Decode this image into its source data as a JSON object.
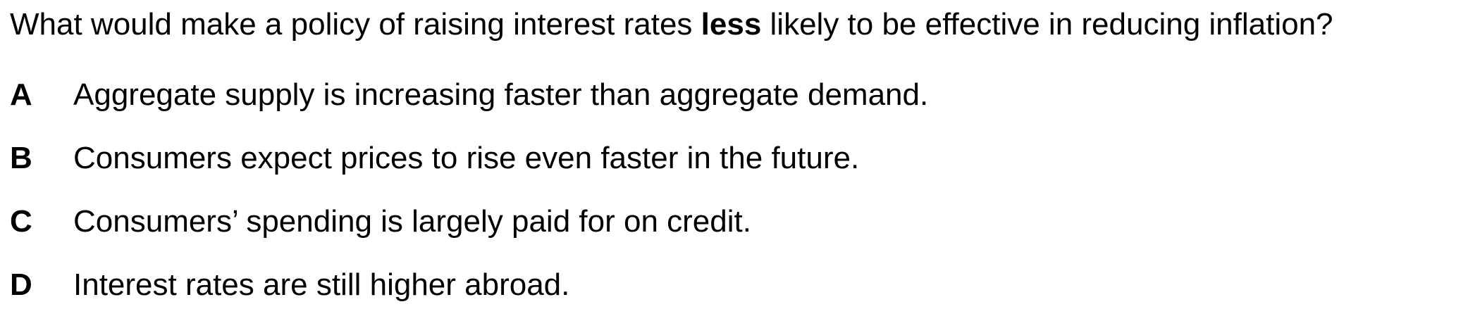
{
  "question": {
    "prefix": "What would make a policy of raising interest rates ",
    "emphasis": "less",
    "suffix": " likely to be effective in reducing inflation?"
  },
  "options": [
    {
      "letter": "A",
      "text": "Aggregate supply is increasing faster than aggregate demand."
    },
    {
      "letter": "B",
      "text": "Consumers expect prices to rise even faster in the future."
    },
    {
      "letter": "C",
      "text": "Consumers’ spending is largely paid for on credit."
    },
    {
      "letter": "D",
      "text": "Interest rates are still higher abroad."
    }
  ]
}
